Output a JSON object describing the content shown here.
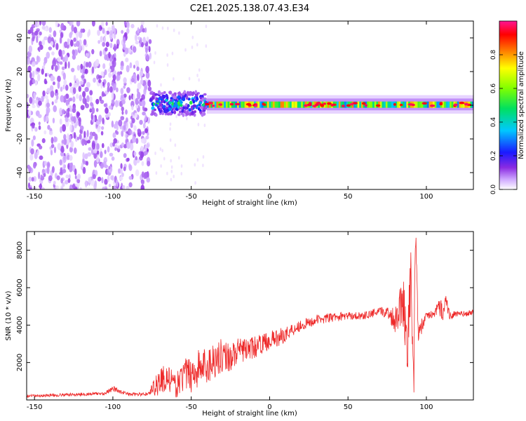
{
  "title": "C2E1.2025.138.07.43.E34",
  "chart_data": [
    {
      "type": "heatmap",
      "xlabel": "Height of straight line (km)",
      "ylabel": "Frequency (Hz)",
      "xlim": [
        -155,
        130
      ],
      "ylim": [
        -50,
        50
      ],
      "x_ticks": [
        -150,
        -100,
        -50,
        0,
        50,
        100
      ],
      "y_ticks": [
        -40,
        -20,
        0,
        20,
        40
      ],
      "colorbar": {
        "label": "Normalized spectral amplitude",
        "range": [
          0,
          1
        ],
        "ticks": [
          0.0,
          0.2,
          0.4,
          0.6,
          0.8
        ],
        "colormap": [
          "#ffffff",
          "#cfa8ff",
          "#8a2be2",
          "#1a1aff",
          "#00c8ff",
          "#00e060",
          "#80ff00",
          "#ffff00",
          "#ff8000",
          "#ff0000",
          "#ff1493"
        ]
      },
      "features": [
        {
          "x_range": [
            -155,
            -76
          ],
          "f_range": [
            -50,
            50
          ],
          "level": 0.15,
          "note_type": "broadband noise"
        },
        {
          "x_range": [
            -76,
            -40
          ],
          "f_range": [
            -6,
            8
          ],
          "level": 0.45
        },
        {
          "x_range": [
            -40,
            130
          ],
          "f_range": [
            -3,
            4
          ],
          "level": 0.8
        }
      ]
    },
    {
      "type": "line",
      "xlabel": "Height of straight line (km)",
      "ylabel": "SNR (10 * v/v)",
      "xlim": [
        -155,
        130
      ],
      "ylim": [
        0,
        9000
      ],
      "x_ticks": [
        -150,
        -100,
        -50,
        0,
        50,
        100
      ],
      "y_ticks": [
        2000,
        4000,
        6000,
        8000
      ],
      "series": [
        {
          "color": "#ee2a2a",
          "x": [
            -155,
            -140,
            -120,
            -105,
            -100,
            -90,
            -80,
            -77,
            -75,
            -70,
            -65,
            -60,
            -55,
            -50,
            -45,
            -40,
            -35,
            -30,
            -25,
            -20,
            -15,
            -10,
            -5,
            0,
            5,
            10,
            15,
            20,
            25,
            30,
            40,
            50,
            60,
            70,
            75,
            80,
            85,
            88,
            90,
            92,
            93,
            95,
            100,
            105,
            108,
            110,
            112,
            115,
            120,
            125,
            130
          ],
          "y": [
            200,
            250,
            300,
            350,
            600,
            300,
            300,
            350,
            600,
            1000,
            1200,
            700,
            1300,
            1400,
            1700,
            1800,
            2200,
            2400,
            2300,
            2600,
            2700,
            2800,
            3000,
            3200,
            3300,
            3500,
            3800,
            4000,
            4100,
            4300,
            4400,
            4500,
            4500,
            4700,
            4700,
            4300,
            5500,
            3000,
            6500,
            1000,
            9000,
            3500,
            4500,
            4600,
            5000,
            4700,
            5400,
            4500,
            4600,
            4600,
            4700
          ],
          "noise": [
            80,
            80,
            90,
            90,
            150,
            90,
            90,
            100,
            300,
            900,
            700,
            600,
            900,
            1000,
            1100,
            1100,
            1000,
            900,
            800,
            700,
            600,
            600,
            500,
            500,
            500,
            400,
            400,
            300,
            300,
            250,
            250,
            200,
            200,
            250,
            300,
            700,
            1500,
            1500,
            1800,
            1500,
            800,
            600,
            200,
            200,
            400,
            700,
            500,
            250,
            150,
            150,
            150
          ]
        }
      ]
    }
  ]
}
